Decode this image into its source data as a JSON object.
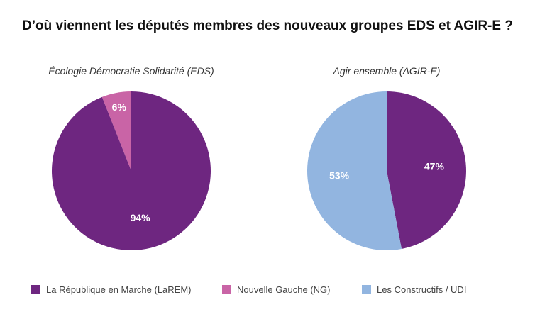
{
  "title": "D’où viennent les députés membres des nouveaux groupes EDS et AGIR-E ?",
  "chart_data": [
    {
      "type": "pie",
      "title": "Écologie Démocratie Solidarité (EDS)",
      "slices": [
        {
          "label": "Nouvelle Gauche (NG)",
          "value": 6,
          "display": "6%",
          "color": "#c964a6"
        },
        {
          "label": "La République en Marche (LaREM)",
          "value": 94,
          "display": "94%",
          "color": "#6e2680"
        }
      ]
    },
    {
      "type": "pie",
      "title": "Agir ensemble (AGIR-E)",
      "slices": [
        {
          "label": "La République en Marche (LaREM)",
          "value": 47,
          "display": "47%",
          "color": "#6e2680"
        },
        {
          "label": "Les Constructifs / UDI",
          "value": 53,
          "display": "53%",
          "color": "#92b5e0"
        }
      ]
    }
  ],
  "legend": [
    {
      "label": "La République en Marche (LaREM)",
      "color": "#6e2680"
    },
    {
      "label": "Nouvelle Gauche (NG)",
      "color": "#c964a6"
    },
    {
      "label": "Les Constructifs / UDI",
      "color": "#92b5e0"
    }
  ]
}
